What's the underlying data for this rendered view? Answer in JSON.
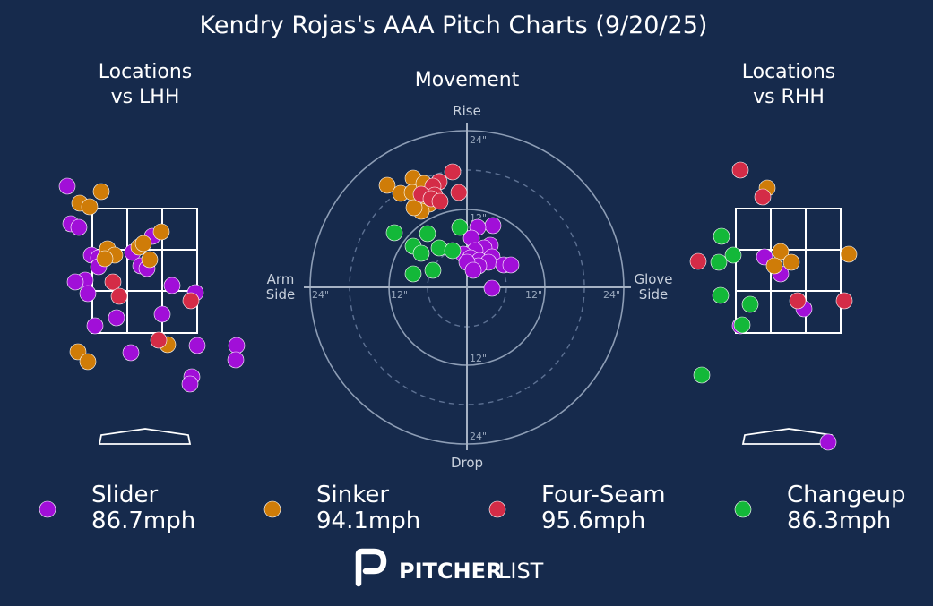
{
  "title": "Kendry Rojas's AAA Pitch Charts (9/20/25)",
  "colors": {
    "background": "#162a4c",
    "Slider": "#a10fd8",
    "Sinker": "#cf7c08",
    "Four-Seam": "#d42c47",
    "Changeup": "#13b839"
  },
  "chart_data": [
    {
      "type": "scatter",
      "title": "Locations\nvs LHH",
      "series": [
        {
          "name": "Slider",
          "points": [
            [
              75,
              208
            ],
            [
              79,
              250
            ],
            [
              88,
              254
            ],
            [
              102,
              285
            ],
            [
              110,
              288
            ],
            [
              110,
              298
            ],
            [
              95,
              313
            ],
            [
              84,
              315
            ],
            [
              98,
              328
            ],
            [
              148,
              282
            ],
            [
              157,
              297
            ],
            [
              164,
              300
            ],
            [
              170,
              264
            ],
            [
              192,
              319
            ],
            [
              218,
              327
            ],
            [
              181,
              351
            ],
            [
              130,
              355
            ],
            [
              106,
              364
            ],
            [
              146,
              394
            ],
            [
              220,
              386
            ],
            [
              264,
              386
            ],
            [
              263,
              402
            ],
            [
              214,
              421
            ],
            [
              212,
              429
            ]
          ]
        },
        {
          "name": "Sinker",
          "points": [
            [
              113,
              214
            ],
            [
              89,
              227
            ],
            [
              100,
              231
            ],
            [
              120,
              278
            ],
            [
              128,
              285
            ],
            [
              117,
              289
            ],
            [
              155,
              276
            ],
            [
              160,
              272
            ],
            [
              167,
              290
            ],
            [
              180,
              259
            ],
            [
              87,
              393
            ],
            [
              98,
              404
            ],
            [
              187,
              385
            ]
          ]
        },
        {
          "name": "Four-Seam",
          "points": [
            [
              126,
              315
            ],
            [
              133,
              331
            ],
            [
              213,
              336
            ],
            [
              177,
              380
            ]
          ]
        },
        {
          "name": "Changeup",
          "points": []
        }
      ]
    },
    {
      "type": "scatter",
      "title": "Movement",
      "axes": {
        "top": "Rise",
        "bottom": "Drop",
        "left": "Arm\nSide",
        "right": "Glove\nSide",
        "ring_labels": [
          "12\"",
          "24\""
        ]
      },
      "series": [
        {
          "name": "Slider",
          "points": [
            [
              550,
              252
            ],
            [
              533,
              254
            ],
            [
              526,
              266
            ],
            [
              547,
              274
            ],
            [
              540,
              277
            ],
            [
              530,
              280
            ],
            [
              517,
              284
            ],
            [
              525,
              288
            ],
            [
              535,
              291
            ],
            [
              549,
              287
            ],
            [
              545,
              293
            ],
            [
              534,
              297
            ],
            [
              521,
              293
            ],
            [
              528,
              302
            ],
            [
              562,
              296
            ],
            [
              570,
              296
            ],
            [
              549,
              322
            ]
          ]
        },
        {
          "name": "Sinker",
          "points": [
            [
              432,
              207
            ],
            [
              447,
              216
            ],
            [
              461,
              199
            ],
            [
              460,
              215
            ],
            [
              474,
              214
            ],
            [
              473,
              205
            ],
            [
              479,
              228
            ],
            [
              470,
              236
            ],
            [
              462,
              232
            ]
          ]
        },
        {
          "name": "Four-Seam",
          "points": [
            [
              505,
              192
            ],
            [
              490,
              203
            ],
            [
              483,
              208
            ],
            [
              512,
              215
            ],
            [
              470,
              217
            ],
            [
              485,
              218
            ],
            [
              481,
              222
            ],
            [
              491,
              225
            ]
          ]
        },
        {
          "name": "Changeup",
          "points": [
            [
              440,
              260
            ],
            [
              477,
              261
            ],
            [
              513,
              254
            ],
            [
              461,
              275
            ],
            [
              490,
              277
            ],
            [
              470,
              283
            ],
            [
              505,
              280
            ],
            [
              461,
              306
            ],
            [
              483,
              302
            ]
          ]
        }
      ]
    },
    {
      "type": "scatter",
      "title": "Locations\nvs RHH",
      "series": [
        {
          "name": "Slider",
          "points": [
            [
              853,
              287
            ],
            [
              871,
              306
            ],
            [
              897,
              345
            ],
            [
              826,
              364
            ],
            [
              924,
              494
            ]
          ]
        },
        {
          "name": "Sinker",
          "points": [
            [
              856,
              210
            ],
            [
              871,
              281
            ],
            [
              864,
              297
            ],
            [
              883,
              293
            ],
            [
              947,
              284
            ]
          ]
        },
        {
          "name": "Four-Seam",
          "points": [
            [
              826,
              190
            ],
            [
              851,
              220
            ],
            [
              779,
              292
            ],
            [
              890,
              336
            ],
            [
              942,
              336
            ]
          ]
        },
        {
          "name": "Changeup",
          "points": [
            [
              805,
              264
            ],
            [
              818,
              285
            ],
            [
              802,
              293
            ],
            [
              804,
              330
            ],
            [
              837,
              340
            ],
            [
              828,
              363
            ],
            [
              783,
              419
            ]
          ]
        }
      ]
    }
  ],
  "legend": [
    {
      "name": "Slider",
      "speed": "86.7mph"
    },
    {
      "name": "Sinker",
      "speed": "94.1mph"
    },
    {
      "name": "Four-Seam",
      "speed": "95.6mph"
    },
    {
      "name": "Changeup",
      "speed": "86.3mph"
    }
  ],
  "logo": {
    "part1": "PITCHER",
    "part2": "LIST"
  }
}
